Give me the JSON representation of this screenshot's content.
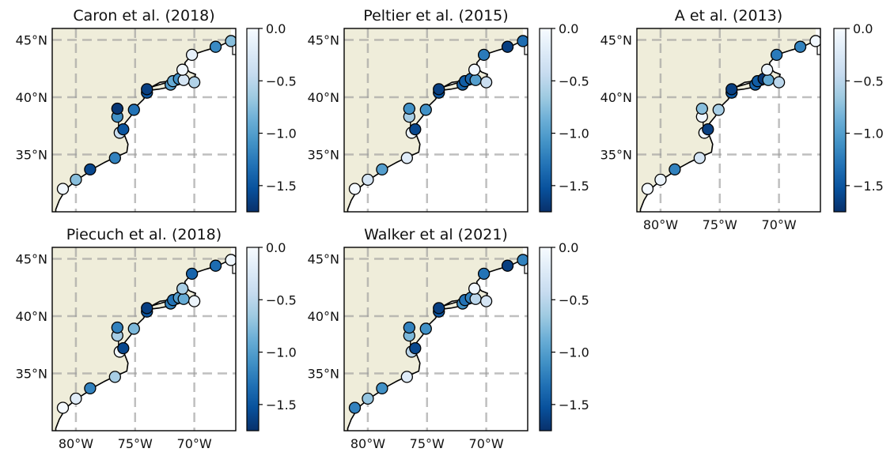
{
  "colors": {
    "land": "#efedda",
    "ocean": "#ffffff",
    "coastline": "#000000",
    "grid": "#9e9e9e",
    "colormap": [
      "#08306b",
      "#08519c",
      "#2171b5",
      "#4292c6",
      "#6baed6",
      "#9ecae1",
      "#c6dbef",
      "#deebf7",
      "#f7fbff"
    ]
  },
  "colorbar": {
    "colormap": "Blues_r",
    "min": -1.75,
    "max": 0.0,
    "ticks": [
      "0.0",
      "−0.5",
      "−1.0",
      "−1.5"
    ],
    "tick_values": [
      0.0,
      -0.5,
      -1.0,
      -1.5
    ]
  },
  "axes": {
    "lon_range": [
      -82,
      -66.5
    ],
    "lat_range": [
      30.0,
      46.0
    ],
    "lon_ticks": [
      -80,
      -75,
      -70
    ],
    "lon_tick_labels": [
      "80°W",
      "75°W",
      "70°W"
    ],
    "lat_ticks": [
      35,
      40,
      45
    ],
    "lat_tick_labels": [
      "35°N",
      "40°N",
      "45°N"
    ]
  },
  "coastline": [
    [
      -81.7,
      30.2
    ],
    [
      -81.4,
      31.0
    ],
    [
      -81.0,
      31.7
    ],
    [
      -80.6,
      32.2
    ],
    [
      -79.9,
      32.8
    ],
    [
      -79.0,
      33.4
    ],
    [
      -78.3,
      33.9
    ],
    [
      -77.6,
      34.3
    ],
    [
      -76.8,
      34.7
    ],
    [
      -75.7,
      35.2
    ],
    [
      -75.6,
      35.9
    ],
    [
      -75.9,
      36.7
    ],
    [
      -76.3,
      37.0
    ],
    [
      -76.1,
      37.4
    ],
    [
      -75.8,
      37.8
    ],
    [
      -75.4,
      38.3
    ],
    [
      -75.1,
      38.8
    ],
    [
      -74.8,
      39.3
    ],
    [
      -74.3,
      39.8
    ],
    [
      -74.0,
      40.3
    ],
    [
      -73.8,
      40.6
    ],
    [
      -73.0,
      40.7
    ],
    [
      -72.0,
      40.9
    ],
    [
      -71.3,
      41.1
    ],
    [
      -71.9,
      41.3
    ],
    [
      -72.6,
      41.2
    ],
    [
      -73.6,
      40.9
    ],
    [
      -72.9,
      41.3
    ],
    [
      -71.4,
      41.5
    ],
    [
      -70.7,
      41.5
    ],
    [
      -70.0,
      41.6
    ],
    [
      -69.9,
      42.0
    ],
    [
      -70.4,
      42.2
    ],
    [
      -70.7,
      42.5
    ],
    [
      -70.8,
      43.0
    ],
    [
      -70.2,
      43.7
    ],
    [
      -69.0,
      44.1
    ],
    [
      -68.0,
      44.4
    ],
    [
      -67.0,
      44.9
    ],
    [
      -66.9,
      45.2
    ]
  ],
  "chesapeake_bay": [
    [
      -76.3,
      37.0
    ],
    [
      -76.4,
      37.5
    ],
    [
      -76.4,
      38.0
    ],
    [
      -76.4,
      38.5
    ],
    [
      -76.5,
      39.0
    ],
    [
      -76.3,
      39.3
    ],
    [
      -76.0,
      39.0
    ]
  ],
  "chart_data": [
    {
      "type": "scatter",
      "title": "Caron et al. (2018)",
      "points": [
        {
          "lon": -81.1,
          "lat": 32.0,
          "value": -0.05
        },
        {
          "lon": -80.0,
          "lat": 32.8,
          "value": -0.75
        },
        {
          "lon": -78.8,
          "lat": 33.7,
          "value": -1.6
        },
        {
          "lon": -76.7,
          "lat": 34.7,
          "value": -1.2
        },
        {
          "lon": -76.3,
          "lat": 36.9,
          "value": -0.4
        },
        {
          "lon": -76.0,
          "lat": 37.2,
          "value": -1.5
        },
        {
          "lon": -76.5,
          "lat": 38.3,
          "value": -1.1
        },
        {
          "lon": -76.5,
          "lat": 39.0,
          "value": -1.7
        },
        {
          "lon": -75.1,
          "lat": 38.9,
          "value": -1.3
        },
        {
          "lon": -74.0,
          "lat": 40.4,
          "value": -1.5
        },
        {
          "lon": -74.0,
          "lat": 40.7,
          "value": -1.65
        },
        {
          "lon": -72.0,
          "lat": 41.1,
          "value": -1.0
        },
        {
          "lon": -71.8,
          "lat": 41.4,
          "value": -0.9
        },
        {
          "lon": -71.3,
          "lat": 41.6,
          "value": -1.1
        },
        {
          "lon": -70.9,
          "lat": 41.5,
          "value": -0.3
        },
        {
          "lon": -70.0,
          "lat": 41.3,
          "value": -0.55
        },
        {
          "lon": -71.0,
          "lat": 42.4,
          "value": -0.05
        },
        {
          "lon": -70.2,
          "lat": 43.7,
          "value": -0.15
        },
        {
          "lon": -68.2,
          "lat": 44.4,
          "value": -1.15
        },
        {
          "lon": -66.9,
          "lat": 44.9,
          "value": -0.75
        }
      ]
    },
    {
      "type": "scatter",
      "title": "Peltier et al. (2015)",
      "points": [
        {
          "lon": -81.1,
          "lat": 32.0,
          "value": -0.02
        },
        {
          "lon": -80.0,
          "lat": 32.8,
          "value": -0.3
        },
        {
          "lon": -78.8,
          "lat": 33.7,
          "value": -1.0
        },
        {
          "lon": -76.7,
          "lat": 34.7,
          "value": -0.2
        },
        {
          "lon": -76.3,
          "lat": 36.9,
          "value": -0.1
        },
        {
          "lon": -76.0,
          "lat": 37.2,
          "value": -1.6
        },
        {
          "lon": -76.5,
          "lat": 38.3,
          "value": -0.6
        },
        {
          "lon": -76.5,
          "lat": 39.0,
          "value": -1.1
        },
        {
          "lon": -75.1,
          "lat": 38.9,
          "value": -1.1
        },
        {
          "lon": -74.0,
          "lat": 40.4,
          "value": -1.5
        },
        {
          "lon": -74.0,
          "lat": 40.7,
          "value": -1.65
        },
        {
          "lon": -72.0,
          "lat": 41.1,
          "value": -1.4
        },
        {
          "lon": -71.8,
          "lat": 41.4,
          "value": -1.45
        },
        {
          "lon": -71.3,
          "lat": 41.6,
          "value": -1.4
        },
        {
          "lon": -70.9,
          "lat": 41.5,
          "value": -1.0
        },
        {
          "lon": -70.0,
          "lat": 41.3,
          "value": -0.4
        },
        {
          "lon": -71.0,
          "lat": 42.4,
          "value": -0.05
        },
        {
          "lon": -70.2,
          "lat": 43.7,
          "value": -1.25
        },
        {
          "lon": -68.2,
          "lat": 44.4,
          "value": -1.65
        },
        {
          "lon": -66.9,
          "lat": 44.9,
          "value": -1.35
        }
      ]
    },
    {
      "type": "scatter",
      "title": "A et al. (2013)",
      "points": [
        {
          "lon": -81.1,
          "lat": 32.0,
          "value": -0.02
        },
        {
          "lon": -80.0,
          "lat": 32.8,
          "value": -0.1
        },
        {
          "lon": -78.8,
          "lat": 33.7,
          "value": -1.2
        },
        {
          "lon": -76.7,
          "lat": 34.7,
          "value": -0.3
        },
        {
          "lon": -76.3,
          "lat": 36.9,
          "value": -0.05
        },
        {
          "lon": -76.0,
          "lat": 37.2,
          "value": -1.65
        },
        {
          "lon": -76.5,
          "lat": 38.3,
          "value": -0.05
        },
        {
          "lon": -76.5,
          "lat": 39.0,
          "value": -0.75
        },
        {
          "lon": -75.1,
          "lat": 38.9,
          "value": -0.6
        },
        {
          "lon": -74.0,
          "lat": 40.4,
          "value": -1.5
        },
        {
          "lon": -74.0,
          "lat": 40.7,
          "value": -1.65
        },
        {
          "lon": -72.0,
          "lat": 41.1,
          "value": -1.4
        },
        {
          "lon": -71.8,
          "lat": 41.4,
          "value": -1.45
        },
        {
          "lon": -71.3,
          "lat": 41.6,
          "value": -1.7
        },
        {
          "lon": -70.9,
          "lat": 41.5,
          "value": -0.9
        },
        {
          "lon": -70.0,
          "lat": 41.3,
          "value": -0.5
        },
        {
          "lon": -71.0,
          "lat": 42.4,
          "value": -0.1
        },
        {
          "lon": -70.2,
          "lat": 43.7,
          "value": -1.25
        },
        {
          "lon": -68.2,
          "lat": 44.4,
          "value": -1.2
        },
        {
          "lon": -66.9,
          "lat": 44.9,
          "value": -0.05
        }
      ]
    },
    {
      "type": "scatter",
      "title": "Piecuch et al. (2018)",
      "points": [
        {
          "lon": -81.1,
          "lat": 32.0,
          "value": -0.02
        },
        {
          "lon": -80.0,
          "lat": 32.8,
          "value": -0.2
        },
        {
          "lon": -78.8,
          "lat": 33.7,
          "value": -1.2
        },
        {
          "lon": -76.7,
          "lat": 34.7,
          "value": -0.6
        },
        {
          "lon": -76.3,
          "lat": 36.9,
          "value": -0.05
        },
        {
          "lon": -76.0,
          "lat": 37.2,
          "value": -1.6
        },
        {
          "lon": -76.5,
          "lat": 38.3,
          "value": -0.6
        },
        {
          "lon": -76.5,
          "lat": 39.0,
          "value": -1.2
        },
        {
          "lon": -75.1,
          "lat": 38.9,
          "value": -0.8
        },
        {
          "lon": -74.0,
          "lat": 40.4,
          "value": -1.5
        },
        {
          "lon": -74.0,
          "lat": 40.7,
          "value": -1.65
        },
        {
          "lon": -72.0,
          "lat": 41.1,
          "value": -1.2
        },
        {
          "lon": -71.8,
          "lat": 41.4,
          "value": -1.3
        },
        {
          "lon": -71.3,
          "lat": 41.6,
          "value": -1.0
        },
        {
          "lon": -70.9,
          "lat": 41.5,
          "value": -0.9
        },
        {
          "lon": -70.0,
          "lat": 41.3,
          "value": -0.1
        },
        {
          "lon": -71.0,
          "lat": 42.4,
          "value": -0.6
        },
        {
          "lon": -70.2,
          "lat": 43.7,
          "value": -1.4
        },
        {
          "lon": -68.2,
          "lat": 44.4,
          "value": -1.35
        },
        {
          "lon": -66.9,
          "lat": 44.9,
          "value": -0.05
        }
      ]
    },
    {
      "type": "scatter",
      "title": "Walker et al (2021)",
      "points": [
        {
          "lon": -81.1,
          "lat": 32.0,
          "value": -1.2
        },
        {
          "lon": -80.0,
          "lat": 32.8,
          "value": -0.7
        },
        {
          "lon": -78.8,
          "lat": 33.7,
          "value": -1.1
        },
        {
          "lon": -76.7,
          "lat": 34.7,
          "value": -0.2
        },
        {
          "lon": -76.3,
          "lat": 36.9,
          "value": -0.5
        },
        {
          "lon": -76.0,
          "lat": 37.2,
          "value": -1.6
        },
        {
          "lon": -76.5,
          "lat": 38.3,
          "value": -0.8
        },
        {
          "lon": -76.5,
          "lat": 39.0,
          "value": -1.2
        },
        {
          "lon": -75.1,
          "lat": 38.9,
          "value": -1.1
        },
        {
          "lon": -74.0,
          "lat": 40.4,
          "value": -1.5
        },
        {
          "lon": -74.0,
          "lat": 40.7,
          "value": -1.65
        },
        {
          "lon": -72.0,
          "lat": 41.1,
          "value": -1.1
        },
        {
          "lon": -71.8,
          "lat": 41.4,
          "value": -1.3
        },
        {
          "lon": -71.3,
          "lat": 41.6,
          "value": -1.2
        },
        {
          "lon": -70.9,
          "lat": 41.5,
          "value": -0.5
        },
        {
          "lon": -70.0,
          "lat": 41.3,
          "value": -0.3
        },
        {
          "lon": -71.0,
          "lat": 42.4,
          "value": -0.05
        },
        {
          "lon": -70.2,
          "lat": 43.7,
          "value": -1.3
        },
        {
          "lon": -68.2,
          "lat": 44.4,
          "value": -1.65
        },
        {
          "lon": -66.9,
          "lat": 44.9,
          "value": -1.2
        }
      ]
    }
  ]
}
